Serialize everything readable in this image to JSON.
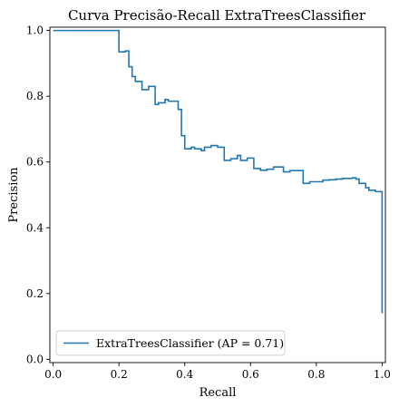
{
  "chart_data": {
    "type": "line",
    "title": "Curva Precisão-Recall ExtraTreesClassifier",
    "xlabel": "Recall",
    "ylabel": "Precision",
    "xlim": [
      -0.01,
      1.01
    ],
    "ylim": [
      -0.01,
      1.01
    ],
    "xticks": [
      0.0,
      0.2,
      0.4,
      0.6,
      0.8,
      1.0
    ],
    "xtick_labels": [
      "0.0",
      "0.2",
      "0.4",
      "0.6",
      "0.8",
      "1.0"
    ],
    "yticks": [
      0.0,
      0.2,
      0.4,
      0.6,
      0.8,
      1.0
    ],
    "ytick_labels": [
      "0.0",
      "0.2",
      "0.4",
      "0.6",
      "0.8",
      "1.0"
    ],
    "grid": false,
    "legend_position": "lower-left",
    "series": [
      {
        "name": "ExtraTreesClassifier (AP = 0.71)",
        "color": "#1f77b4",
        "drawstyle": "steps-post",
        "recall": [
          0.0,
          0.2,
          0.22,
          0.23,
          0.24,
          0.25,
          0.27,
          0.29,
          0.31,
          0.32,
          0.34,
          0.35,
          0.38,
          0.39,
          0.4,
          0.42,
          0.43,
          0.45,
          0.46,
          0.48,
          0.5,
          0.52,
          0.54,
          0.56,
          0.57,
          0.59,
          0.61,
          0.63,
          0.65,
          0.67,
          0.68,
          0.7,
          0.72,
          0.74,
          0.76,
          0.78,
          0.8,
          0.82,
          0.84,
          0.86,
          0.88,
          0.9,
          0.91,
          0.92,
          0.93,
          0.95,
          0.96,
          0.98,
          0.99,
          1.0
        ],
        "precision": [
          1.0,
          0.935,
          0.938,
          0.89,
          0.86,
          0.845,
          0.82,
          0.83,
          0.775,
          0.78,
          0.79,
          0.785,
          0.76,
          0.68,
          0.64,
          0.645,
          0.64,
          0.635,
          0.645,
          0.65,
          0.645,
          0.605,
          0.61,
          0.62,
          0.605,
          0.612,
          0.58,
          0.575,
          0.578,
          0.585,
          0.585,
          0.57,
          0.574,
          0.574,
          0.535,
          0.54,
          0.54,
          0.545,
          0.546,
          0.548,
          0.55,
          0.55,
          0.552,
          0.548,
          0.535,
          0.522,
          0.514,
          0.51,
          0.51,
          0.14
        ]
      }
    ]
  }
}
